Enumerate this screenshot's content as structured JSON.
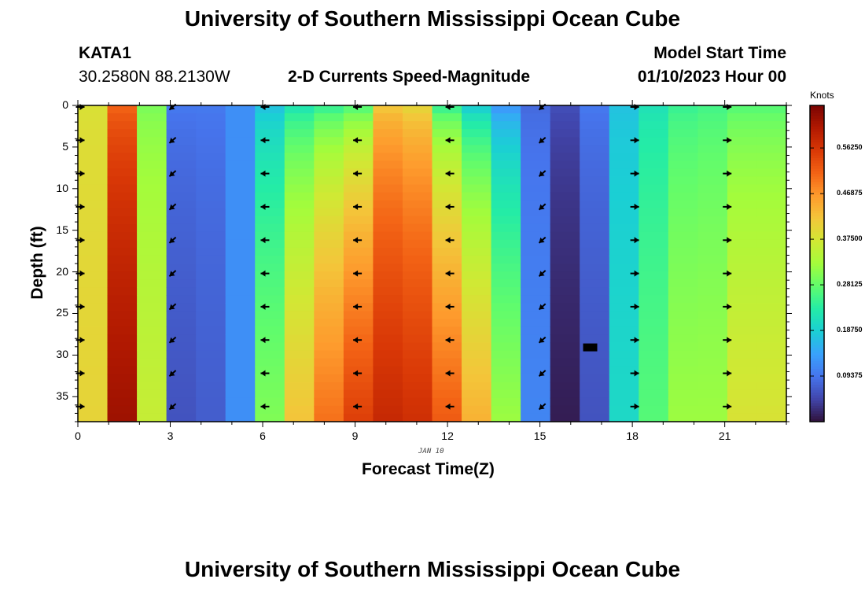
{
  "header": {
    "title": "University of Southern Mississippi Ocean Cube",
    "station": "KATA1",
    "coords": "30.2580N  88.2130W",
    "subtitle": "2-D Currents Speed-Magnitude",
    "model_start_label": "Model Start Time",
    "model_start_value": "01/10/2023 Hour 00"
  },
  "footer": {
    "title": "University of Southern Mississippi Ocean Cube"
  },
  "chart_data": {
    "type": "heatmap",
    "xlabel": "Forecast Time(Z)",
    "ylabel": "Depth (ft)",
    "date_label": "JAN 10",
    "xlim": [
      0,
      23
    ],
    "ylim": [
      38,
      0
    ],
    "x_ticks": [
      0,
      3,
      6,
      9,
      12,
      15,
      18,
      21
    ],
    "y_ticks": [
      0,
      5,
      10,
      15,
      20,
      25,
      30,
      35
    ],
    "colorbar": {
      "unit": "Knots",
      "range": [
        0,
        0.65
      ],
      "tick_values": [
        0.5625,
        0.46875,
        0.375,
        0.28125,
        0.1875,
        0.09375
      ],
      "tick_labels": [
        "0.56250",
        "0.46875",
        "0.37500",
        "0.28125",
        "0.18750",
        "0.09375"
      ],
      "colors": [
        "#30123b",
        "#4145ab",
        "#4675ed",
        "#39a2fc",
        "#1bcfd4",
        "#24eca6",
        "#61fc6c",
        "#a4fc3b",
        "#d1e834",
        "#f3c63a",
        "#fe9b2d",
        "#f36315",
        "#d93806",
        "#b11901",
        "#7a0402"
      ]
    },
    "speed_knots_by_hour": [
      {
        "hour": 0,
        "surface": 0.38,
        "bottom": 0.4
      },
      {
        "hour": 1,
        "surface": 0.5,
        "bottom": 0.62
      },
      {
        "hour": 2,
        "surface": 0.29,
        "bottom": 0.36
      },
      {
        "hour": 3,
        "surface": 0.1,
        "bottom": 0.06
      },
      {
        "hour": 4,
        "surface": 0.1,
        "bottom": 0.07
      },
      {
        "hour": 5,
        "surface": 0.12,
        "bottom": 0.12
      },
      {
        "hour": 6,
        "surface": 0.16,
        "bottom": 0.3
      },
      {
        "hour": 7,
        "surface": 0.2,
        "bottom": 0.42
      },
      {
        "hour": 8,
        "surface": 0.22,
        "bottom": 0.5
      },
      {
        "hour": 9,
        "surface": 0.24,
        "bottom": 0.55
      },
      {
        "hour": 10,
        "surface": 0.4,
        "bottom": 0.58
      },
      {
        "hour": 11,
        "surface": 0.38,
        "bottom": 0.57
      },
      {
        "hour": 12,
        "surface": 0.22,
        "bottom": 0.52
      },
      {
        "hour": 13,
        "surface": 0.16,
        "bottom": 0.44
      },
      {
        "hour": 14,
        "surface": 0.11,
        "bottom": 0.32
      },
      {
        "hour": 15,
        "surface": 0.08,
        "bottom": 0.11
      },
      {
        "hour": 16,
        "surface": 0.06,
        "bottom": 0.01
      },
      {
        "hour": 17,
        "surface": 0.1,
        "bottom": 0.06
      },
      {
        "hour": 18,
        "surface": 0.17,
        "bottom": 0.2
      },
      {
        "hour": 19,
        "surface": 0.21,
        "bottom": 0.27
      },
      {
        "hour": 20,
        "surface": 0.24,
        "bottom": 0.32
      },
      {
        "hour": 21,
        "surface": 0.25,
        "bottom": 0.32
      },
      {
        "hour": 22,
        "surface": 0.26,
        "bottom": 0.38
      },
      {
        "hour": 23,
        "surface": 0.26,
        "bottom": 0.38
      }
    ],
    "arrow_depths_ft": [
      0,
      4,
      8,
      12,
      16,
      20,
      24,
      28,
      32,
      36
    ],
    "arrows": [
      {
        "hour": 0,
        "direction": "east"
      },
      {
        "hour": 3,
        "direction": "southwest"
      },
      {
        "hour": 6,
        "direction": "west"
      },
      {
        "hour": 9,
        "direction": "west"
      },
      {
        "hour": 12,
        "direction": "west"
      },
      {
        "hour": 15,
        "direction": "southwest"
      },
      {
        "hour": 18,
        "direction": "east"
      },
      {
        "hour": 21,
        "direction": "east"
      }
    ]
  }
}
